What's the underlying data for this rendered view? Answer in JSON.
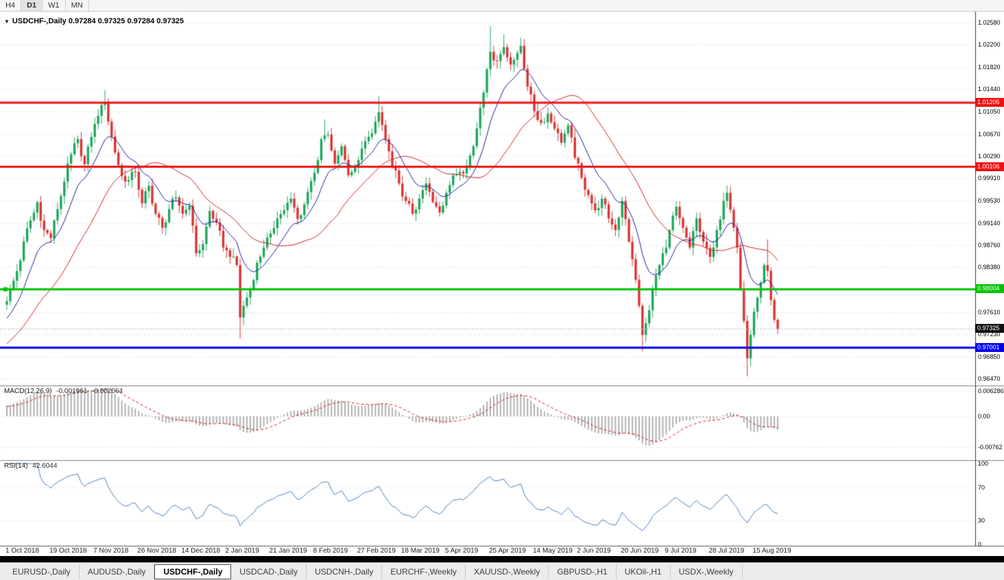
{
  "toolbar": {
    "timeframes": [
      {
        "label": "H4",
        "active": false
      },
      {
        "label": "D1",
        "active": true
      },
      {
        "label": "W1",
        "active": false
      },
      {
        "label": "MN",
        "active": false
      }
    ]
  },
  "chart": {
    "dropdown_icon": "▼",
    "title_symbol": "USDCHF-,Daily",
    "title_ohlc": "0.97284 0.97325 0.97284 0.97325"
  },
  "tabbar": {
    "tabs": [
      {
        "label": "EURUSD-,Daily",
        "active": false
      },
      {
        "label": "AUDUSD-,Daily",
        "active": false
      },
      {
        "label": "USDCHF-,Daily",
        "active": true
      },
      {
        "label": "USDCAD-,Daily",
        "active": false
      },
      {
        "label": "USDCNH-,Daily",
        "active": false
      },
      {
        "label": "EURCHF-,Weekly",
        "active": false
      },
      {
        "label": "XAUUSD-,Weekly",
        "active": false
      },
      {
        "label": "GBPUSD-,H1",
        "active": false
      },
      {
        "label": "UKOil-,H1",
        "active": false
      },
      {
        "label": "USDX-,Weekly",
        "active": false
      }
    ]
  },
  "chart_data": {
    "type": "candlestick",
    "symbol": "USDCHF",
    "timeframe": "Daily",
    "title": "USDCHF-,Daily",
    "ohlc_display": {
      "open": 0.97284,
      "high": 0.97325,
      "low": 0.97284,
      "close": 0.97325
    },
    "current_price": 0.97325,
    "current_price_label": "0.97325",
    "y_axis_ticks": [
      "1.02580",
      "1.02200",
      "1.01820",
      "1.01440",
      "1.01050",
      "1.00670",
      "1.00290",
      "0.99910",
      "0.99530",
      "0.99140",
      "0.98760",
      "0.98380",
      "0.98000",
      "0.97610",
      "0.97230",
      "0.96850",
      "0.96470"
    ],
    "x_axis_labels": [
      "1 Oct 2018",
      "19 Oct 2018",
      "7 Nov 2018",
      "26 Nov 2018",
      "14 Dec 2018",
      "2 Jan 2019",
      "21 Jan 2019",
      "8 Feb 2019",
      "27 Feb 2019",
      "18 Mar 2019",
      "5 Apr 2019",
      "25 Apr 2019",
      "14 May 2019",
      "2 Jun 2019",
      "20 Jun 2019",
      "9 Jul 2019",
      "28 Jul 2019",
      "15 Aug 2019"
    ],
    "x_label_indices": [
      0,
      13,
      26,
      39,
      52,
      65,
      78,
      91,
      104,
      117,
      130,
      143,
      156,
      169,
      182,
      195,
      208,
      221
    ],
    "horizontal_levels": [
      {
        "price": 1.01205,
        "label": "1.01205",
        "color": "#ee1111",
        "style": "solid",
        "handle": false
      },
      {
        "price": 1.00106,
        "label": "1.00106",
        "color": "#ee1111",
        "style": "solid",
        "handle": false
      },
      {
        "price": 0.98004,
        "label": "0.98004",
        "color": "#00c200",
        "style": "solid",
        "handle": true
      },
      {
        "price": 0.97001,
        "label": "0.97001",
        "color": "#0000ee",
        "style": "solid",
        "handle": false
      }
    ],
    "pre_path": [
      [
        -30,
        0.964
      ],
      [
        -22,
        0.9672
      ],
      [
        -14,
        0.9706
      ],
      [
        -8,
        0.9735
      ],
      [
        -1,
        0.9772
      ]
    ],
    "price_path": [
      [
        0,
        0.978
      ],
      [
        2,
        0.9815
      ],
      [
        4,
        0.985
      ],
      [
        6,
        0.9905
      ],
      [
        8,
        0.9932
      ],
      [
        9,
        0.995
      ],
      [
        11,
        0.9902
      ],
      [
        13,
        0.9888
      ],
      [
        15,
        0.9938
      ],
      [
        17,
        0.9985
      ],
      [
        19,
        1.0032
      ],
      [
        21,
        1.0058
      ],
      [
        23,
        1.0015
      ],
      [
        25,
        1.0062
      ],
      [
        27,
        1.0098
      ],
      [
        29,
        1.0122
      ],
      [
        30,
        1.0088
      ],
      [
        32,
        1.0035
      ],
      [
        34,
        0.9995
      ],
      [
        36,
        0.9988
      ],
      [
        38,
        1.0002
      ],
      [
        40,
        0.9948
      ],
      [
        42,
        0.9978
      ],
      [
        44,
        0.993
      ],
      [
        46,
        0.9906
      ],
      [
        48,
        0.9938
      ],
      [
        50,
        0.9958
      ],
      [
        52,
        0.993
      ],
      [
        54,
        0.9944
      ],
      [
        56,
        0.9862
      ],
      [
        58,
        0.9878
      ],
      [
        60,
        0.9935
      ],
      [
        62,
        0.9915
      ],
      [
        64,
        0.9872
      ],
      [
        66,
        0.9856
      ],
      [
        68,
        0.9842
      ],
      [
        69,
        0.9752
      ],
      [
        70,
        0.9772
      ],
      [
        72,
        0.9802
      ],
      [
        74,
        0.9846
      ],
      [
        76,
        0.9872
      ],
      [
        78,
        0.9896
      ],
      [
        80,
        0.9922
      ],
      [
        82,
        0.9936
      ],
      [
        84,
        0.9956
      ],
      [
        86,
        0.9921
      ],
      [
        88,
        0.9946
      ],
      [
        90,
        0.9986
      ],
      [
        92,
        1.0022
      ],
      [
        93,
        1.0058
      ],
      [
        95,
        1.0066
      ],
      [
        97,
        1.0016
      ],
      [
        99,
        1.0046
      ],
      [
        101,
        0.9996
      ],
      [
        103,
        1.0012
      ],
      [
        105,
        1.0042
      ],
      [
        107,
        1.0062
      ],
      [
        109,
        1.0088
      ],
      [
        110,
        1.0104
      ],
      [
        112,
        1.0058
      ],
      [
        114,
        1.0012
      ],
      [
        116,
        0.9982
      ],
      [
        118,
        0.9952
      ],
      [
        120,
        0.993
      ],
      [
        122,
        0.9956
      ],
      [
        124,
        0.9982
      ],
      [
        126,
        0.995
      ],
      [
        128,
        0.9932
      ],
      [
        130,
        0.9966
      ],
      [
        132,
        0.9996
      ],
      [
        134,
        1.0002
      ],
      [
        136,
        1.0012
      ],
      [
        138,
        1.0046
      ],
      [
        140,
        1.0112
      ],
      [
        142,
        1.0178
      ],
      [
        143,
        1.0208
      ],
      [
        145,
        1.0192
      ],
      [
        147,
        1.0216
      ],
      [
        149,
        1.0186
      ],
      [
        151,
        1.0206
      ],
      [
        152,
        1.0218
      ],
      [
        154,
        1.0148
      ],
      [
        156,
        1.0106
      ],
      [
        158,
        1.0086
      ],
      [
        160,
        1.0102
      ],
      [
        162,
        1.0076
      ],
      [
        164,
        1.0052
      ],
      [
        166,
        1.0082
      ],
      [
        168,
        1.0026
      ],
      [
        170,
        0.9992
      ],
      [
        172,
        0.9962
      ],
      [
        174,
        0.9936
      ],
      [
        176,
        0.9956
      ],
      [
        178,
        0.9922
      ],
      [
        180,
        0.9902
      ],
      [
        182,
        0.9952
      ],
      [
        184,
        0.9882
      ],
      [
        185,
        0.9852
      ],
      [
        187,
        0.9772
      ],
      [
        188,
        0.9722
      ],
      [
        189,
        0.9742
      ],
      [
        191,
        0.9802
      ],
      [
        193,
        0.9842
      ],
      [
        195,
        0.9872
      ],
      [
        196,
        0.9902
      ],
      [
        198,
        0.9942
      ],
      [
        200,
        0.9906
      ],
      [
        202,
        0.9872
      ],
      [
        204,
        0.9922
      ],
      [
        206,
        0.9882
      ],
      [
        208,
        0.9856
      ],
      [
        210,
        0.9902
      ],
      [
        212,
        0.9952
      ],
      [
        213,
        0.9966
      ],
      [
        215,
        0.9906
      ],
      [
        216,
        0.9872
      ],
      [
        217,
        0.9802
      ],
      [
        218,
        0.9746
      ],
      [
        219,
        0.9682
      ],
      [
        220,
        0.9722
      ],
      [
        221,
        0.9762
      ],
      [
        222,
        0.9786
      ],
      [
        223,
        0.9812
      ],
      [
        224,
        0.9842
      ],
      [
        225,
        0.9832
      ],
      [
        226,
        0.9782
      ],
      [
        227,
        0.9748
      ],
      [
        228,
        0.97325
      ]
    ],
    "spikes": [
      {
        "i": 29,
        "high": 1.0142
      },
      {
        "i": 69,
        "low": 0.9716
      },
      {
        "i": 94,
        "high": 1.0092
      },
      {
        "i": 110,
        "high": 1.0132
      },
      {
        "i": 143,
        "high": 1.0252
      },
      {
        "i": 147,
        "high": 1.0238
      },
      {
        "i": 152,
        "high": 1.0232
      },
      {
        "i": 188,
        "low": 0.9694
      },
      {
        "i": 219,
        "low": 0.9651
      },
      {
        "i": 225,
        "high": 0.9886
      }
    ],
    "indicators": {
      "macd": {
        "label": "MACD(12,26,9)",
        "value_main": "-0.001961",
        "value_signal": "-0.002064",
        "axis_ticks": [
          "0.006286",
          "0.00",
          "-0.00762"
        ],
        "fast": 12,
        "slow": 26,
        "signal": 9
      },
      "rsi": {
        "label": "RSI(14)",
        "value": "42.6044",
        "axis_ticks": [
          "100",
          "70",
          "30",
          "0"
        ],
        "period": 14,
        "levels": [
          70,
          30
        ]
      }
    },
    "moving_averages": [
      {
        "type": "ema",
        "period": 12,
        "color": "#1c1c9e"
      },
      {
        "type": "sma",
        "period": 30,
        "color": "#cc2222"
      }
    ],
    "colors": {
      "bull": "#1fa75c",
      "bear": "#dd3333",
      "macd_hist": "#b0b0b0",
      "macd_signal": "#cc2222",
      "rsi_line": "#4a7ebb",
      "grid": "#dcdcdc",
      "level_red": "#ee1111",
      "level_green": "#00c200",
      "level_blue": "#0000ee",
      "current_price_badge": "#111111"
    }
  }
}
